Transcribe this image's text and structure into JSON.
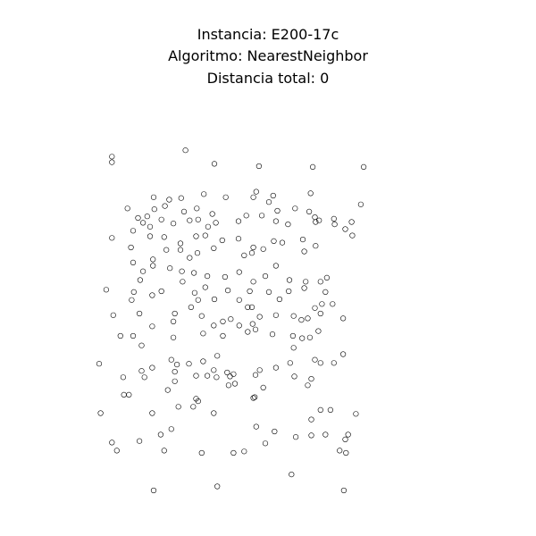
{
  "header": {
    "instance_label": "Instancia: E200-17c",
    "algorithm_label": "Algoritmo: NearestNeighbor",
    "distance_label": "Distancia total: 0"
  },
  "colors": {
    "background": "#ffffff",
    "text": "#000000",
    "node_stroke": "#000000"
  },
  "chart_data": {
    "type": "scatter",
    "title": "Instancia: E200-17c",
    "subtitle": [
      "Algoritmo: NearestNeighbor",
      "Distancia total: 0"
    ],
    "xlabel": "",
    "ylabel": "",
    "grid": false,
    "legend": "none",
    "xlim": [
      0,
      480
    ],
    "ylim": [
      0,
      480
    ],
    "points": [
      [
        77,
        462
      ],
      [
        167,
        457
      ],
      [
        346,
        462
      ],
      [
        272,
        442
      ],
      [
        25,
        412
      ],
      [
        92,
        412
      ],
      [
        145,
        415
      ],
      [
        190,
        415
      ],
      [
        349,
        415
      ],
      [
        205,
        413
      ],
      [
        340,
        412
      ],
      [
        235,
        403
      ],
      [
        348,
        398
      ],
      [
        18,
        402
      ],
      [
        57,
        400
      ],
      [
        87,
        392
      ],
      [
        102,
        385
      ],
      [
        162,
        365
      ],
      [
        222,
        382
      ],
      [
        248,
        388
      ],
      [
        278,
        395
      ],
      [
        320,
        392
      ],
      [
        300,
        393
      ],
      [
        352,
        392
      ],
      [
        220,
        345
      ],
      [
        35,
        342
      ],
      [
        42,
        342
      ],
      [
        2,
        365
      ],
      [
        75,
        365
      ],
      [
        112,
        357
      ],
      [
        133,
        357
      ],
      [
        140,
        350
      ],
      [
        300,
        373
      ],
      [
        313,
        361
      ],
      [
        327,
        361
      ],
      [
        363,
        366
      ],
      [
        34,
        320
      ],
      [
        64,
        320
      ],
      [
        137,
        347
      ],
      [
        183,
        330
      ],
      [
        276,
        319
      ],
      [
        137,
        318
      ],
      [
        185,
        319
      ],
      [
        192,
        328
      ],
      [
        232,
        333
      ],
      [
        295,
        330
      ],
      [
        107,
        325
      ],
      [
        97,
        336
      ],
      [
        127,
        303
      ],
      [
        147,
        300
      ],
      [
        162,
        311
      ],
      [
        181,
        314
      ],
      [
        190,
        316
      ],
      [
        227,
        311
      ],
      [
        250,
        308
      ],
      [
        270,
        302
      ],
      [
        305,
        298
      ],
      [
        313,
        302
      ],
      [
        332,
        302
      ],
      [
        345,
        291
      ],
      [
        110,
        304
      ],
      [
        75,
        308
      ],
      [
        107,
        313
      ],
      [
        0,
        303
      ],
      [
        60,
        312
      ],
      [
        102,
        298
      ],
      [
        166,
        320
      ],
      [
        218,
        346
      ],
      [
        221,
        317
      ],
      [
        167,
        293
      ],
      [
        153,
        318
      ],
      [
        300,
        322
      ],
      [
        30,
        268
      ],
      [
        48,
        268
      ],
      [
        60,
        280
      ],
      [
        105,
        270
      ],
      [
        147,
        265
      ],
      [
        175,
        268
      ],
      [
        210,
        263
      ],
      [
        221,
        260
      ],
      [
        245,
        266
      ],
      [
        274,
        268
      ],
      [
        287,
        271
      ],
      [
        298,
        270
      ],
      [
        310,
        262
      ],
      [
        275,
        283
      ],
      [
        20,
        242
      ],
      [
        57,
        240
      ],
      [
        75,
        256
      ],
      [
        105,
        250
      ],
      [
        145,
        243
      ],
      [
        175,
        250
      ],
      [
        198,
        255
      ],
      [
        227,
        244
      ],
      [
        250,
        242
      ],
      [
        275,
        243
      ],
      [
        295,
        246
      ],
      [
        313,
        240
      ],
      [
        345,
        246
      ],
      [
        107,
        240
      ],
      [
        186,
        247
      ],
      [
        217,
        253
      ],
      [
        286,
        248
      ],
      [
        130,
        232
      ],
      [
        162,
        255
      ],
      [
        315,
        228
      ],
      [
        305,
        233
      ],
      [
        330,
        228
      ],
      [
        49,
        213
      ],
      [
        75,
        217
      ],
      [
        88,
        212
      ],
      [
        118,
        200
      ],
      [
        135,
        214
      ],
      [
        150,
        207
      ],
      [
        182,
        211
      ],
      [
        213,
        212
      ],
      [
        240,
        213
      ],
      [
        268,
        212
      ],
      [
        290,
        208
      ],
      [
        320,
        213
      ],
      [
        140,
        223
      ],
      [
        163,
        222
      ],
      [
        198,
        223
      ],
      [
        216,
        232
      ],
      [
        46,
        223
      ],
      [
        58,
        198
      ],
      [
        255,
        222
      ],
      [
        210,
        232
      ],
      [
        62,
        187
      ],
      [
        100,
        183
      ],
      [
        250,
        180
      ],
      [
        313,
        200
      ],
      [
        218,
        200
      ],
      [
        76,
        180
      ],
      [
        117,
        187
      ],
      [
        134,
        189
      ],
      [
        153,
        193
      ],
      [
        178,
        194
      ],
      [
        198,
        188
      ],
      [
        235,
        193
      ],
      [
        269,
        198
      ],
      [
        292,
        200
      ],
      [
        322,
        195
      ],
      [
        10,
        210
      ],
      [
        48,
        176
      ],
      [
        76,
        172
      ],
      [
        128,
        170
      ],
      [
        95,
        160
      ],
      [
        115,
        160
      ],
      [
        139,
        164
      ],
      [
        162,
        158
      ],
      [
        205,
        167
      ],
      [
        216,
        164
      ],
      [
        232,
        159
      ],
      [
        259,
        151
      ],
      [
        290,
        162
      ],
      [
        18,
        145
      ],
      [
        45,
        157
      ],
      [
        92,
        144
      ],
      [
        115,
        152
      ],
      [
        137,
        143
      ],
      [
        150,
        142
      ],
      [
        174,
        148
      ],
      [
        197,
        146
      ],
      [
        218,
        157
      ],
      [
        247,
        149
      ],
      [
        288,
        147
      ],
      [
        306,
        155
      ],
      [
        62,
        126
      ],
      [
        72,
        131
      ],
      [
        88,
        122
      ],
      [
        105,
        127
      ],
      [
        128,
        123
      ],
      [
        154,
        131
      ],
      [
        165,
        126
      ],
      [
        250,
        124
      ],
      [
        267,
        128
      ],
      [
        311,
        123
      ],
      [
        333,
        128
      ],
      [
        348,
        134
      ],
      [
        78,
        109
      ],
      [
        68,
        118
      ],
      [
        120,
        112
      ],
      [
        140,
        122
      ],
      [
        160,
        115
      ],
      [
        208,
        117
      ],
      [
        230,
        117
      ],
      [
        240,
        100
      ],
      [
        306,
        125
      ],
      [
        332,
        121
      ],
      [
        357,
        125
      ],
      [
        358,
        142
      ],
      [
        40,
        108
      ],
      [
        55,
        120
      ],
      [
        77,
        94
      ],
      [
        99,
        97
      ],
      [
        116,
        95
      ],
      [
        148,
        90
      ],
      [
        179,
        94
      ],
      [
        218,
        94
      ],
      [
        277,
        108
      ],
      [
        246,
        92
      ],
      [
        299,
        89
      ],
      [
        370,
        103
      ],
      [
        48,
        136
      ],
      [
        72,
        143
      ],
      [
        93,
        105
      ],
      [
        138,
        108
      ],
      [
        197,
        124
      ],
      [
        222,
        87
      ],
      [
        252,
        111
      ],
      [
        297,
        112
      ],
      [
        305,
        119
      ],
      [
        18,
        50
      ],
      [
        18,
        43
      ],
      [
        122,
        35
      ],
      [
        226,
        55
      ],
      [
        163,
        52
      ],
      [
        302,
        56
      ],
      [
        374,
        56
      ]
    ]
  }
}
